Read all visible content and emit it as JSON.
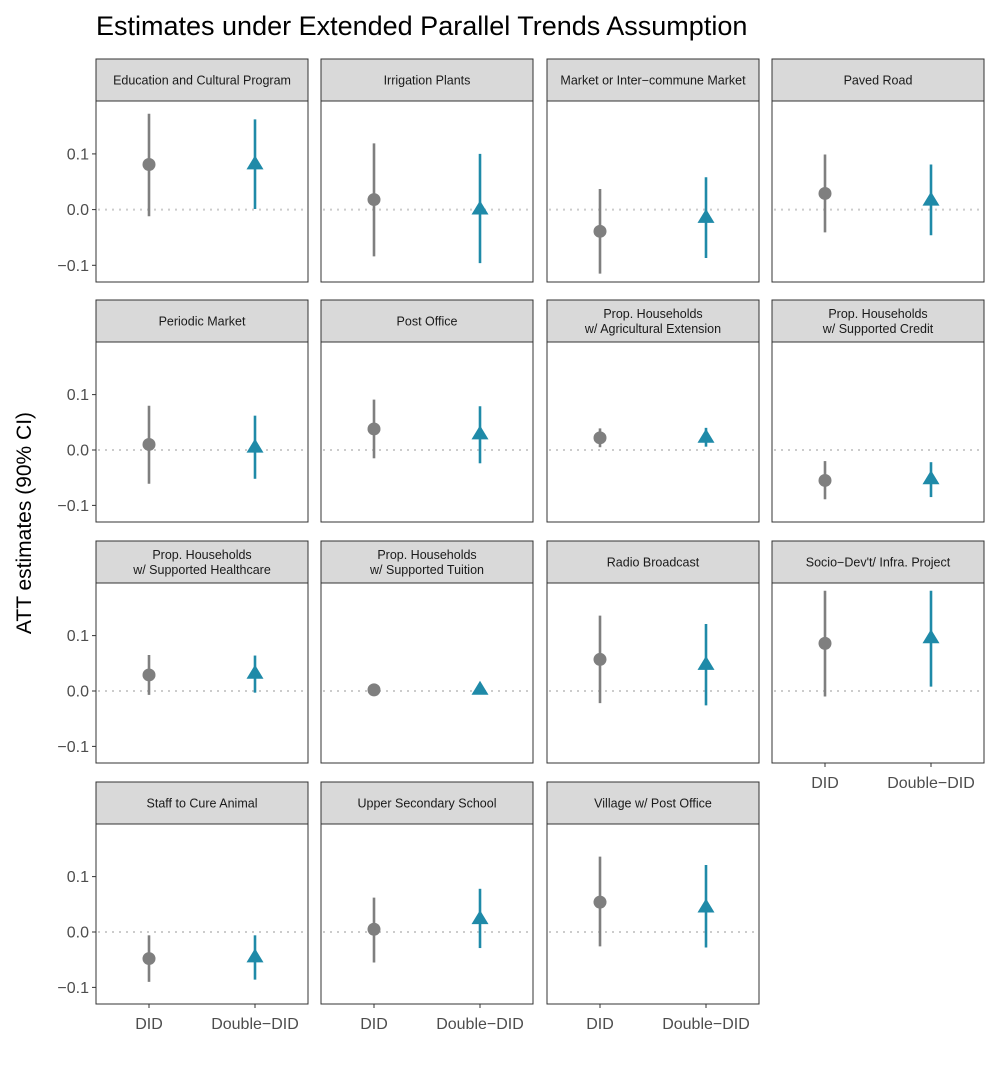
{
  "chart_data": {
    "type": "faceted-pointrange",
    "title": "Estimates under Extended Parallel Trends Assumption",
    "ylabel": "ATT estimates (90% CI)",
    "xlabel": "",
    "categories": [
      "DID",
      "Double−DID"
    ],
    "ylim": [
      -0.13,
      0.195
    ],
    "yticks": [
      -0.1,
      0.0,
      0.1
    ],
    "ytick_labels": [
      "−0.1",
      "0.0",
      "0.1"
    ],
    "reference_line": 0,
    "colors": {
      "DID": "#7f7f7f",
      "Double-DID": "#1f8aa8"
    },
    "markers": {
      "DID": "circle",
      "Double-DID": "triangle"
    },
    "panels": [
      {
        "label": "Education and Cultural Program",
        "estimates": [
          {
            "est": 0.081,
            "lo": -0.012,
            "hi": 0.172
          },
          {
            "est": 0.083,
            "lo": 0.001,
            "hi": 0.162
          }
        ]
      },
      {
        "label": "Irrigation Plants",
        "estimates": [
          {
            "est": 0.018,
            "lo": -0.084,
            "hi": 0.119
          },
          {
            "est": 0.002,
            "lo": -0.096,
            "hi": 0.1
          }
        ]
      },
      {
        "label": "Market or Inter−commune Market",
        "estimates": [
          {
            "est": -0.039,
            "lo": -0.115,
            "hi": 0.037
          },
          {
            "est": -0.013,
            "lo": -0.087,
            "hi": 0.058
          }
        ]
      },
      {
        "label": "Paved Road",
        "estimates": [
          {
            "est": 0.029,
            "lo": -0.041,
            "hi": 0.099
          },
          {
            "est": 0.018,
            "lo": -0.046,
            "hi": 0.081
          }
        ]
      },
      {
        "label": "Periodic Market",
        "estimates": [
          {
            "est": 0.01,
            "lo": -0.061,
            "hi": 0.08
          },
          {
            "est": 0.006,
            "lo": -0.052,
            "hi": 0.062
          }
        ]
      },
      {
        "label": "Post Office",
        "estimates": [
          {
            "est": 0.038,
            "lo": -0.015,
            "hi": 0.091
          },
          {
            "est": 0.03,
            "lo": -0.024,
            "hi": 0.079
          }
        ]
      },
      {
        "label": "Prop. Households\nw/ Agricultural Extension",
        "estimates": [
          {
            "est": 0.022,
            "lo": 0.005,
            "hi": 0.039
          },
          {
            "est": 0.024,
            "lo": 0.006,
            "hi": 0.04
          }
        ]
      },
      {
        "label": "Prop. Households\nw/ Supported Credit",
        "estimates": [
          {
            "est": -0.055,
            "lo": -0.089,
            "hi": -0.02
          },
          {
            "est": -0.051,
            "lo": -0.085,
            "hi": -0.022
          }
        ]
      },
      {
        "label": "Prop. Households\nw/ Supported Healthcare",
        "estimates": [
          {
            "est": 0.029,
            "lo": -0.007,
            "hi": 0.065
          },
          {
            "est": 0.033,
            "lo": -0.003,
            "hi": 0.064
          }
        ]
      },
      {
        "label": "Prop. Households\nw/ Supported Tuition",
        "estimates": [
          {
            "est": 0.002,
            "lo": 0.0,
            "hi": 0.004
          },
          {
            "est": 0.004,
            "lo": 0.002,
            "hi": 0.006
          }
        ]
      },
      {
        "label": "Radio Broadcast",
        "estimates": [
          {
            "est": 0.057,
            "lo": -0.022,
            "hi": 0.136
          },
          {
            "est": 0.049,
            "lo": -0.026,
            "hi": 0.121
          }
        ]
      },
      {
        "label": "Socio−Dev't/ Infra. Project",
        "estimates": [
          {
            "est": 0.086,
            "lo": -0.01,
            "hi": 0.181
          },
          {
            "est": 0.097,
            "lo": 0.008,
            "hi": 0.181
          }
        ]
      },
      {
        "label": "Staff to Cure Animal",
        "estimates": [
          {
            "est": -0.048,
            "lo": -0.09,
            "hi": -0.006
          },
          {
            "est": -0.044,
            "lo": -0.086,
            "hi": -0.006
          }
        ]
      },
      {
        "label": "Upper Secondary School",
        "estimates": [
          {
            "est": 0.005,
            "lo": -0.055,
            "hi": 0.062
          },
          {
            "est": 0.025,
            "lo": -0.029,
            "hi": 0.078
          }
        ]
      },
      {
        "label": "Village w/ Post Office",
        "estimates": [
          {
            "est": 0.054,
            "lo": -0.026,
            "hi": 0.136
          },
          {
            "est": 0.046,
            "lo": -0.028,
            "hi": 0.121
          }
        ]
      }
    ]
  }
}
